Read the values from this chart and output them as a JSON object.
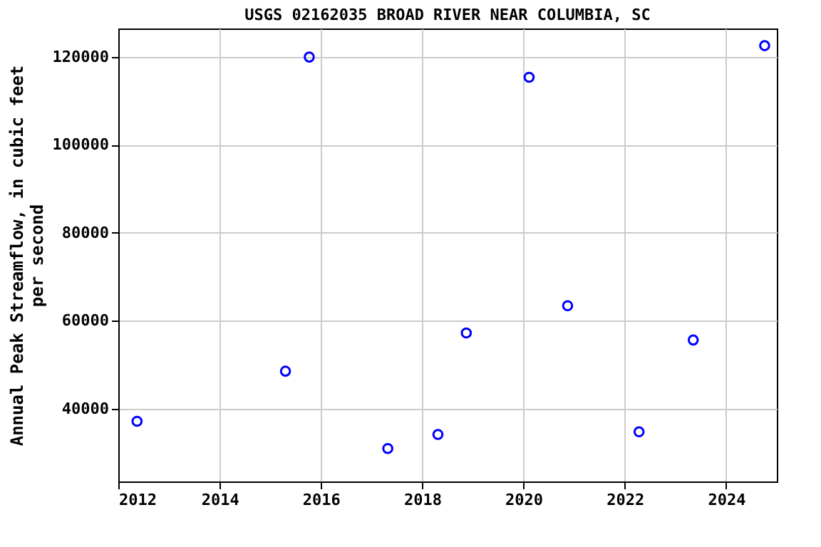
{
  "chart_data": {
    "type": "scatter",
    "title": "USGS 02162035 BROAD RIVER NEAR COLUMBIA, SC",
    "ylabel": "Annual Peak Streamflow, in cubic feet\nper second",
    "x": [
      2012.37,
      2015.3,
      2015.77,
      2017.32,
      2018.31,
      2018.87,
      2020.11,
      2020.87,
      2022.28,
      2023.35,
      2024.76
    ],
    "series": [
      {
        "color": "#0000ff",
        "values": [
          37100,
          48500,
          120000,
          30900,
          34100,
          57200,
          115400,
          63400,
          34700,
          55600,
          122600
        ]
      }
    ],
    "xlim": [
      2012,
      2025
    ],
    "xticks": [
      2012,
      2014,
      2016,
      2018,
      2020,
      2022,
      2024
    ],
    "ylim": [
      23400,
      126500
    ],
    "yticks": [
      40000,
      60000,
      80000,
      100000,
      120000
    ],
    "grid": true,
    "marker": "circle"
  }
}
